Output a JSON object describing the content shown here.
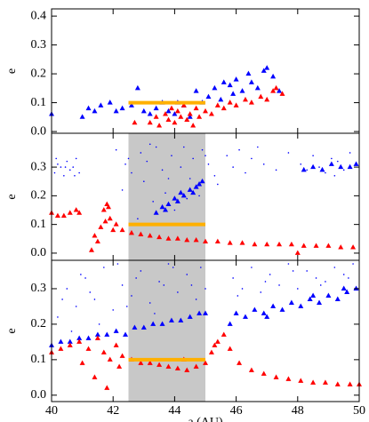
{
  "chart_data": [
    {
      "type": "scatter",
      "ylabel": "e",
      "xlim": [
        40,
        50
      ],
      "ylim": [
        -0.006,
        0.425
      ],
      "yticks": [
        {
          "value": 0,
          "label": "0.0"
        },
        {
          "value": 0.1,
          "label": "0.1"
        },
        {
          "value": 0.2,
          "label": "0.2"
        },
        {
          "value": 0.3,
          "label": "0.3"
        },
        {
          "value": 0.4,
          "label": "0.4"
        }
      ],
      "hline": {
        "x": [
          42.5,
          45
        ],
        "y": 0.1,
        "color": "#ffb000"
      },
      "series": [
        {
          "color": "#0000ff",
          "marker": "triangle",
          "x": [
            40.0,
            41.2,
            41.4,
            41.6,
            41.9,
            42.1,
            42.3,
            42.6,
            42.8,
            43.0,
            43.2,
            43.4,
            43.6,
            43.8,
            44.0,
            44.1,
            44.3,
            44.5,
            44.7,
            44.9,
            45.1,
            45.3,
            45.5,
            45.6,
            45.8,
            46.0,
            46.2,
            46.4,
            46.5,
            46.7,
            46.9,
            47.0,
            47.2,
            47.4,
            41.0,
            45.9
          ],
          "values": [
            0.06,
            0.08,
            0.07,
            0.09,
            0.1,
            0.07,
            0.08,
            0.09,
            0.15,
            0.07,
            0.06,
            0.08,
            0.1,
            0.07,
            0.06,
            0.1,
            0.09,
            0.05,
            0.14,
            0.1,
            0.12,
            0.15,
            0.11,
            0.17,
            0.16,
            0.18,
            0.14,
            0.2,
            0.17,
            0.15,
            0.21,
            0.22,
            0.19,
            0.14,
            0.05,
            0.13
          ]
        },
        {
          "color": "#ff0000",
          "marker": "triangle",
          "x": [
            42.7,
            43.2,
            43.4,
            43.5,
            43.7,
            43.8,
            43.9,
            44.0,
            44.1,
            44.2,
            44.3,
            44.4,
            44.5,
            44.6,
            44.7,
            44.8,
            45.0,
            45.2,
            45.4,
            45.6,
            45.8,
            46.0,
            46.3,
            46.5,
            46.8,
            47.0,
            47.2,
            47.3,
            47.5
          ],
          "values": [
            0.03,
            0.03,
            0.05,
            0.02,
            0.06,
            0.04,
            0.08,
            0.03,
            0.07,
            0.05,
            0.09,
            0.04,
            0.06,
            0.02,
            0.08,
            0.05,
            0.07,
            0.06,
            0.09,
            0.08,
            0.1,
            0.09,
            0.11,
            0.1,
            0.12,
            0.11,
            0.14,
            0.15,
            0.13
          ]
        }
      ]
    },
    {
      "type": "scatter",
      "ylabel": "e",
      "xlim": [
        40,
        50
      ],
      "ylim": [
        -0.025,
        0.418
      ],
      "yticks": [
        {
          "value": 0,
          "label": "0.0"
        },
        {
          "value": 0.1,
          "label": "0.1"
        },
        {
          "value": 0.2,
          "label": "0.2"
        },
        {
          "value": 0.3,
          "label": "0.3"
        }
      ],
      "shade": {
        "x": [
          42.5,
          45
        ],
        "color": "#c8c8c8"
      },
      "hline": {
        "x": [
          42.5,
          45
        ],
        "y": 0.1,
        "color": "#ffb000"
      },
      "series": [
        {
          "color": "#0000ff",
          "marker": "dot",
          "x": [
            40.1,
            40.2,
            40.3,
            40.4,
            40.5,
            40.6,
            40.7,
            40.8,
            40.9,
            40.15,
            40.45,
            40.75,
            42.1,
            42.3,
            42.4,
            42.6,
            42.8,
            42.9,
            43.0,
            43.1,
            43.3,
            43.4,
            43.6,
            43.7,
            43.9,
            44.0,
            44.2,
            44.3,
            44.5,
            44.6,
            44.8,
            44.9,
            45.1,
            45.3,
            45.4,
            42.5,
            43.2,
            43.8,
            44.4,
            45.0,
            45.7,
            45.9,
            46.1,
            46.3,
            46.5,
            46.7,
            46.9,
            47.3,
            47.7,
            48.1,
            48.3,
            48.5,
            48.7,
            48.9,
            49.1,
            49.3,
            49.5,
            49.7,
            49.9,
            49.2
          ],
          "values": [
            0.28,
            0.31,
            0.3,
            0.27,
            0.32,
            0.29,
            0.3,
            0.33,
            0.28,
            0.33,
            0.3,
            0.27,
            0.36,
            0.22,
            0.31,
            0.28,
            0.12,
            0.35,
            0.25,
            0.32,
            0.18,
            0.37,
            0.29,
            0.21,
            0.34,
            0.15,
            0.3,
            0.37,
            0.26,
            0.33,
            0.2,
            0.36,
            0.31,
            0.27,
            0.24,
            0.33,
            0.38,
            0.26,
            0.19,
            0.34,
            0.34,
            0.3,
            0.36,
            0.28,
            0.33,
            0.37,
            0.31,
            0.29,
            0.35,
            0.31,
            0.29,
            0.34,
            0.3,
            0.28,
            0.33,
            0.32,
            0.29,
            0.35,
            0.31,
            0.27
          ]
        },
        {
          "color": "#0000ff",
          "marker": "triangle",
          "x": [
            43.4,
            43.6,
            43.8,
            44.0,
            44.1,
            44.3,
            44.5,
            44.6,
            44.8,
            44.9,
            43.7,
            44.2,
            44.7,
            48.2,
            48.5,
            48.8,
            49.1,
            49.4,
            49.7,
            49.9
          ],
          "values": [
            0.14,
            0.16,
            0.17,
            0.19,
            0.18,
            0.2,
            0.22,
            0.21,
            0.24,
            0.25,
            0.15,
            0.21,
            0.23,
            0.29,
            0.3,
            0.29,
            0.31,
            0.3,
            0.3,
            0.31
          ]
        },
        {
          "color": "#ff0000",
          "marker": "triangle",
          "x": [
            40.0,
            40.2,
            40.4,
            40.6,
            40.8,
            40.9,
            41.3,
            41.5,
            41.6,
            41.7,
            41.8,
            41.9,
            42.0,
            41.4,
            41.75,
            41.85,
            42.1,
            42.3,
            42.6,
            42.9,
            43.2,
            43.5,
            43.8,
            44.1,
            44.4,
            44.7,
            45.0,
            45.4,
            45.8,
            46.2,
            46.6,
            47.0,
            47.4,
            47.8,
            48.2,
            48.6,
            49.0,
            49.4,
            49.8,
            48.0
          ],
          "values": [
            0.14,
            0.13,
            0.13,
            0.14,
            0.15,
            0.14,
            0.01,
            0.04,
            0.09,
            0.15,
            0.17,
            0.12,
            0.08,
            0.06,
            0.11,
            0.16,
            0.1,
            0.08,
            0.07,
            0.065,
            0.06,
            0.055,
            0.05,
            0.05,
            0.045,
            0.045,
            0.04,
            0.04,
            0.035,
            0.035,
            0.03,
            0.03,
            0.03,
            0.03,
            0.025,
            0.025,
            0.025,
            0.02,
            0.02,
            0.0
          ]
        }
      ]
    },
    {
      "type": "scatter",
      "ylabel": "e",
      "xlabel": "a (AU)",
      "xlim": [
        40,
        50
      ],
      "xticks": [
        40,
        42,
        44,
        46,
        48,
        50
      ],
      "ylim": [
        -0.018,
        0.38
      ],
      "yticks": [
        {
          "value": 0,
          "label": "0.0"
        },
        {
          "value": 0.1,
          "label": "0.1"
        },
        {
          "value": 0.2,
          "label": "0.2"
        },
        {
          "value": 0.3,
          "label": "0.3"
        }
      ],
      "shade": {
        "x": [
          42.5,
          45
        ],
        "color": "#c8c8c8"
      },
      "hline": {
        "x": [
          42.5,
          45
        ],
        "y": 0.1,
        "color": "#ffb000"
      },
      "series": [
        {
          "color": "#0000ff",
          "marker": "dot",
          "x": [
            40.2,
            40.5,
            40.8,
            41.1,
            41.4,
            41.7,
            42.0,
            42.3,
            42.6,
            42.9,
            43.2,
            43.5,
            43.8,
            44.1,
            44.4,
            44.7,
            45.0,
            40.35,
            40.95,
            41.55,
            42.15,
            42.75,
            43.35,
            43.95,
            44.55,
            41.25,
            42.45,
            43.65,
            44.85,
            40.65,
            45.9,
            46.2,
            46.5,
            46.8,
            47.1,
            47.4,
            47.7,
            48.0,
            48.3,
            48.6,
            48.9,
            49.2,
            49.5,
            49.8,
            46.05,
            46.95,
            47.85,
            48.75,
            49.65,
            49.95
          ],
          "values": [
            0.22,
            0.3,
            0.25,
            0.33,
            0.27,
            0.36,
            0.24,
            0.31,
            0.28,
            0.35,
            0.26,
            0.32,
            0.37,
            0.29,
            0.34,
            0.27,
            0.3,
            0.27,
            0.34,
            0.2,
            0.37,
            0.33,
            0.23,
            0.36,
            0.31,
            0.29,
            0.25,
            0.31,
            0.36,
            0.18,
            0.33,
            0.3,
            0.36,
            0.29,
            0.34,
            0.31,
            0.37,
            0.3,
            0.35,
            0.33,
            0.32,
            0.36,
            0.34,
            0.37,
            0.28,
            0.32,
            0.35,
            0.31,
            0.33,
            0.3
          ]
        },
        {
          "color": "#0000ff",
          "marker": "triangle",
          "x": [
            40.0,
            40.3,
            40.6,
            40.9,
            41.2,
            41.5,
            41.8,
            42.1,
            42.4,
            42.7,
            43.0,
            43.3,
            43.6,
            43.9,
            44.2,
            44.5,
            44.8,
            45.0,
            45.8,
            46.0,
            46.3,
            46.6,
            46.9,
            47.2,
            47.5,
            47.8,
            48.1,
            48.4,
            48.7,
            49.0,
            49.3,
            49.6,
            49.9,
            47.0,
            48.5,
            49.5
          ],
          "values": [
            0.14,
            0.15,
            0.15,
            0.16,
            0.16,
            0.17,
            0.17,
            0.18,
            0.17,
            0.19,
            0.19,
            0.2,
            0.2,
            0.21,
            0.21,
            0.22,
            0.23,
            0.23,
            0.2,
            0.23,
            0.22,
            0.24,
            0.23,
            0.25,
            0.24,
            0.26,
            0.25,
            0.27,
            0.26,
            0.28,
            0.27,
            0.29,
            0.3,
            0.22,
            0.28,
            0.3
          ]
        },
        {
          "color": "#ff0000",
          "marker": "triangle",
          "x": [
            40.0,
            40.3,
            40.6,
            40.9,
            41.2,
            41.5,
            41.7,
            41.9,
            42.1,
            42.3,
            41.0,
            41.4,
            41.8,
            42.2,
            42.6,
            42.9,
            43.2,
            43.5,
            43.8,
            44.1,
            44.4,
            44.7,
            45.0,
            45.2,
            45.4,
            45.6,
            45.8,
            46.1,
            46.5,
            46.9,
            47.3,
            47.7,
            48.1,
            48.5,
            48.9,
            49.3,
            49.7,
            50.0,
            44.3,
            45.3
          ],
          "values": [
            0.12,
            0.13,
            0.14,
            0.15,
            0.13,
            0.16,
            0.12,
            0.1,
            0.14,
            0.11,
            0.09,
            0.05,
            0.02,
            0.08,
            0.1,
            0.09,
            0.09,
            0.085,
            0.08,
            0.075,
            0.07,
            0.08,
            0.09,
            0.12,
            0.15,
            0.17,
            0.13,
            0.09,
            0.07,
            0.06,
            0.05,
            0.045,
            0.04,
            0.035,
            0.035,
            0.03,
            0.03,
            0.03,
            0.1,
            0.14
          ]
        }
      ]
    }
  ]
}
